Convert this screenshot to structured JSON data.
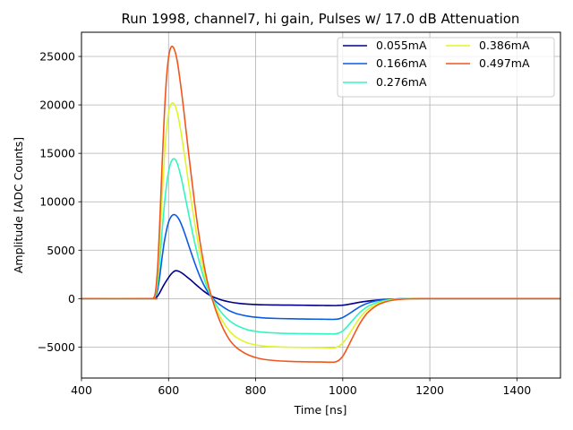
{
  "chart_data": {
    "type": "line",
    "title": "Run 1998, channel7, hi gain, Pulses w/ 17.0 dB Attenuation",
    "xlabel": "Time [ns]",
    "ylabel": "Amplitude [ADC Counts]",
    "xlim": [
      400,
      1500
    ],
    "ylim": [
      -8200,
      27500
    ],
    "xticks": [
      400,
      600,
      800,
      1000,
      1200,
      1400
    ],
    "xtick_labels": [
      "400",
      "600",
      "800",
      "1000",
      "1200",
      "1400"
    ],
    "yticks": [
      -5000,
      0,
      5000,
      10000,
      15000,
      20000,
      25000
    ],
    "ytick_labels": [
      "−5000",
      "0",
      "5000",
      "10000",
      "15000",
      "20000",
      "25000"
    ],
    "grid": true,
    "legend_position": "top-right",
    "legend_columns": 2,
    "x": [
      400,
      560,
      565,
      570,
      575,
      580,
      585,
      590,
      595,
      600,
      605,
      610,
      615,
      620,
      625,
      630,
      635,
      640,
      650,
      660,
      670,
      680,
      690,
      700,
      710,
      720,
      730,
      740,
      750,
      760,
      780,
      800,
      820,
      850,
      880,
      900,
      920,
      940,
      960,
      980,
      990,
      1000,
      1010,
      1020,
      1030,
      1040,
      1050,
      1060,
      1080,
      1100,
      1120,
      1140,
      1160,
      1180,
      1200,
      1300,
      1400,
      1500
    ],
    "series": [
      {
        "name": "0.055mA",
        "color": "#00008b",
        "values": [
          0,
          0,
          5,
          60,
          270,
          640,
          1060,
          1470,
          1830,
          2180,
          2480,
          2720,
          2870,
          2870,
          2790,
          2660,
          2500,
          2320,
          1960,
          1560,
          1170,
          800,
          480,
          220,
          40,
          -120,
          -240,
          -340,
          -420,
          -480,
          -560,
          -610,
          -640,
          -660,
          -670,
          -680,
          -690,
          -700,
          -710,
          -720,
          -705,
          -680,
          -620,
          -540,
          -450,
          -370,
          -300,
          -240,
          -150,
          -80,
          -40,
          -15,
          -5,
          0,
          0,
          0,
          0,
          0
        ]
      },
      {
        "name": "0.166mA",
        "color": "#0b5ae6",
        "values": [
          0,
          0,
          12,
          200,
          950,
          2400,
          4200,
          5800,
          7000,
          7900,
          8400,
          8650,
          8650,
          8450,
          8100,
          7600,
          7000,
          6350,
          5000,
          3700,
          2500,
          1500,
          700,
          100,
          -350,
          -700,
          -1000,
          -1260,
          -1450,
          -1600,
          -1800,
          -1920,
          -2000,
          -2050,
          -2080,
          -2100,
          -2110,
          -2120,
          -2130,
          -2140,
          -2100,
          -1950,
          -1700,
          -1400,
          -1100,
          -820,
          -600,
          -430,
          -200,
          -90,
          -40,
          -15,
          -5,
          0,
          0,
          0,
          0,
          0
        ]
      },
      {
        "name": "0.276mA",
        "color": "#33f5c0",
        "values": [
          0,
          0,
          20,
          350,
          1600,
          4000,
          6900,
          9500,
          11600,
          13100,
          14000,
          14400,
          14380,
          13950,
          13200,
          12300,
          11200,
          10100,
          7900,
          5800,
          3900,
          2300,
          1000,
          50,
          -700,
          -1350,
          -1870,
          -2280,
          -2600,
          -2850,
          -3200,
          -3380,
          -3480,
          -3560,
          -3600,
          -3610,
          -3620,
          -3630,
          -3640,
          -3650,
          -3570,
          -3330,
          -2900,
          -2380,
          -1870,
          -1400,
          -1030,
          -750,
          -370,
          -170,
          -70,
          -25,
          -8,
          0,
          0,
          0,
          0,
          0
        ]
      },
      {
        "name": "0.386mA",
        "color": "#ddf529",
        "values": [
          0,
          0,
          30,
          500,
          2500,
          6200,
          10500,
          14300,
          17300,
          19200,
          20000,
          20200,
          19900,
          19200,
          18100,
          16800,
          15300,
          13800,
          10700,
          7800,
          5200,
          3000,
          1300,
          0,
          -1100,
          -2000,
          -2750,
          -3350,
          -3800,
          -4120,
          -4550,
          -4780,
          -4900,
          -4980,
          -5020,
          -5030,
          -5040,
          -5050,
          -5060,
          -5080,
          -4950,
          -4600,
          -4000,
          -3300,
          -2600,
          -1950,
          -1430,
          -1040,
          -520,
          -240,
          -100,
          -35,
          -10,
          0,
          0,
          0,
          0,
          0
        ]
      },
      {
        "name": "0.497mA",
        "color": "#f2561d",
        "values": [
          0,
          0,
          40,
          700,
          3300,
          8100,
          13700,
          18700,
          22600,
          24900,
          25900,
          26000,
          25500,
          24500,
          23000,
          21300,
          19400,
          17400,
          13500,
          9800,
          6500,
          3800,
          1600,
          0,
          -1400,
          -2550,
          -3500,
          -4250,
          -4800,
          -5200,
          -5750,
          -6080,
          -6280,
          -6420,
          -6480,
          -6510,
          -6530,
          -6540,
          -6550,
          -6560,
          -6400,
          -5950,
          -5150,
          -4250,
          -3350,
          -2520,
          -1840,
          -1330,
          -660,
          -310,
          -130,
          -45,
          -12,
          0,
          0,
          0,
          0,
          0
        ]
      }
    ]
  }
}
